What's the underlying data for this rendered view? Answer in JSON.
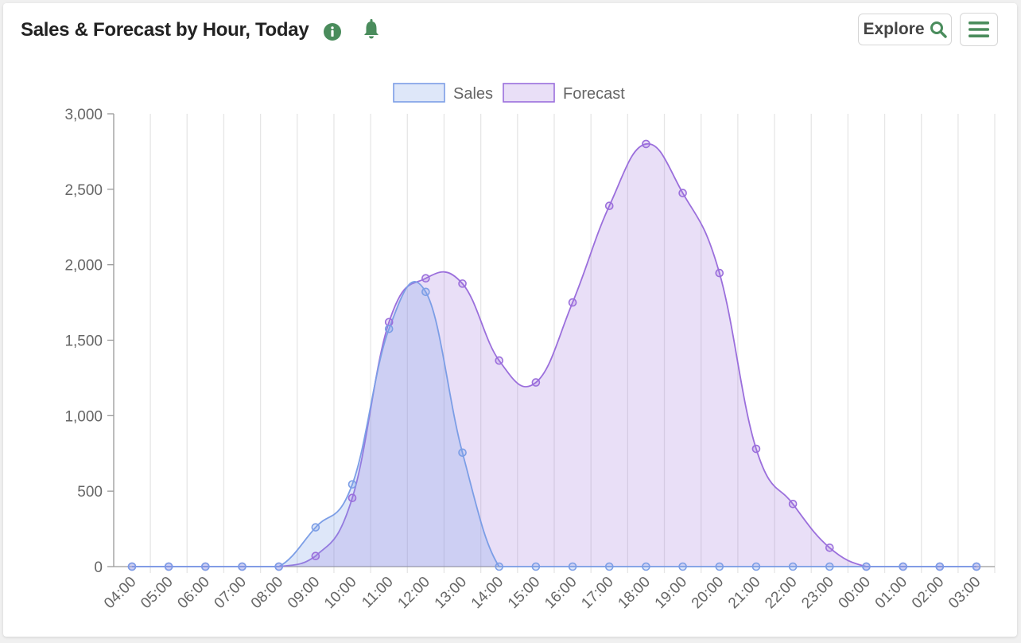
{
  "header": {
    "title": "Sales & Forecast by Hour, Today",
    "explore_label": "Explore",
    "icons": [
      "info-icon",
      "bell-icon",
      "search-icon",
      "menu-icon"
    ]
  },
  "colors": {
    "accent_green": "#4a8c5c",
    "sales_line": "#7c9ee6",
    "sales_fill": "rgba(124,158,230,0.25)",
    "forecast_line": "#9b6fdc",
    "forecast_fill": "rgba(155,111,220,0.22)",
    "grid": "#e6e6e6"
  },
  "chart_data": {
    "type": "area",
    "title": "",
    "xlabel": "",
    "ylabel": "",
    "x": [
      "04:00",
      "05:00",
      "06:00",
      "07:00",
      "08:00",
      "09:00",
      "10:00",
      "11:00",
      "12:00",
      "13:00",
      "14:00",
      "15:00",
      "16:00",
      "17:00",
      "18:00",
      "19:00",
      "20:00",
      "21:00",
      "22:00",
      "23:00",
      "00:00",
      "01:00",
      "02:00",
      "03:00"
    ],
    "series": [
      {
        "name": "Sales",
        "values": [
          0,
          0,
          0,
          0,
          0,
          260,
          545,
          1575,
          1820,
          755,
          0,
          0,
          0,
          0,
          0,
          0,
          0,
          0,
          0,
          0,
          0,
          0,
          0,
          0
        ]
      },
      {
        "name": "Forecast",
        "values": [
          0,
          0,
          0,
          0,
          0,
          70,
          455,
          1620,
          1910,
          1875,
          1365,
          1220,
          1750,
          2390,
          2800,
          2475,
          1945,
          780,
          415,
          125,
          0,
          0,
          0,
          0
        ]
      }
    ],
    "ylim": [
      0,
      3000
    ],
    "yticks": [
      0,
      500,
      1000,
      1500,
      2000,
      2500,
      3000
    ],
    "ytick_labels": [
      "0",
      "500",
      "1,000",
      "1,500",
      "2,000",
      "2,500",
      "3,000"
    ],
    "grid": true,
    "legend": "top-center"
  }
}
